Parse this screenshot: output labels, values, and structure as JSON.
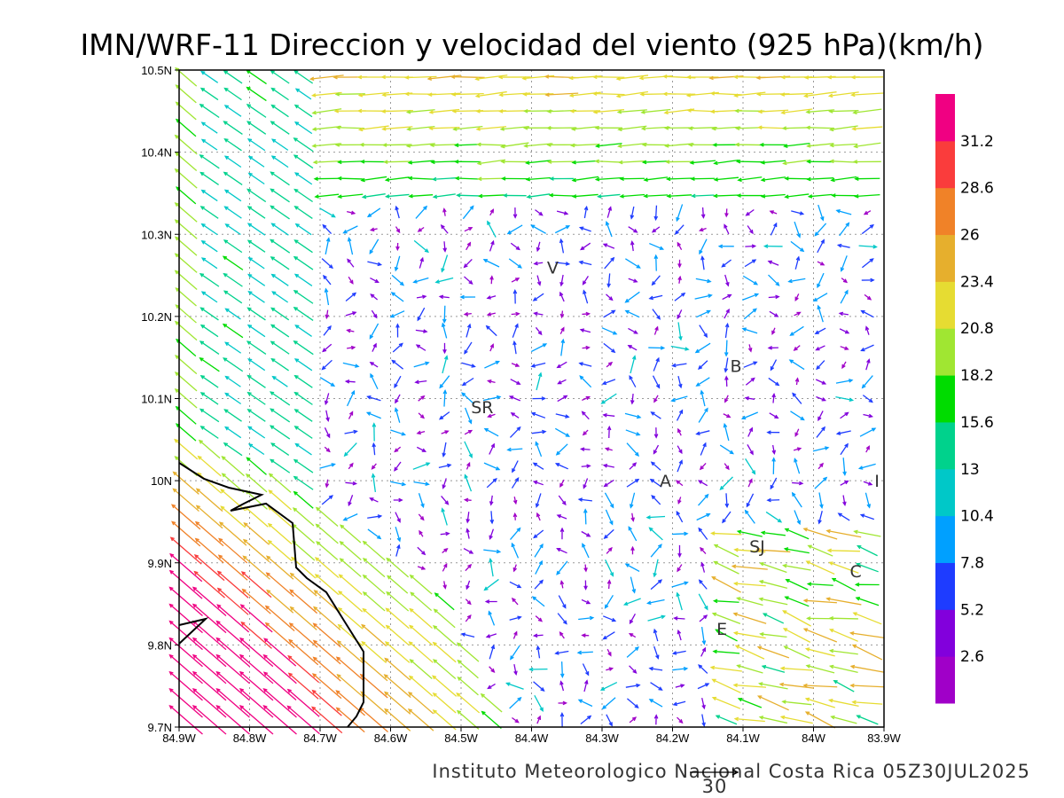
{
  "title": "IMN/WRF-11 Direccion y velocidad del viento (925 hPa)(km/h)",
  "footer": "Instituto Meteorologico Nacional Costa Rica  05Z30JUL2025",
  "reference_vector": {
    "label": "30",
    "value": 30
  },
  "chart_data": {
    "type": "vector-field",
    "units": "km/h",
    "level": "925 hPa",
    "x_ticks": [
      "84.9W",
      "84.8W",
      "84.7W",
      "84.6W",
      "84.5W",
      "84.4W",
      "84.3W",
      "84.2W",
      "84.1W",
      "84W",
      "83.9W"
    ],
    "y_ticks": [
      "10.5N",
      "10.4N",
      "10.3N",
      "10.2N",
      "10.1N",
      "10N",
      "9.9N",
      "9.8N",
      "9.7N"
    ],
    "xlim": [
      -84.9,
      -83.9
    ],
    "ylim": [
      9.7,
      10.5
    ],
    "grid": true,
    "colorbar": {
      "labels": [
        "2.6",
        "5.2",
        "7.8",
        "10.4",
        "13",
        "15.6",
        "18.2",
        "20.8",
        "23.4",
        "26",
        "28.6",
        "31.2"
      ],
      "colors": [
        "#a000c8",
        "#8200dc",
        "#1e3cff",
        "#00a0ff",
        "#00c8c8",
        "#00d28c",
        "#00dc00",
        "#a0e632",
        "#e6dc32",
        "#e6af2d",
        "#f08228",
        "#fa3c3c",
        "#f00082"
      ]
    },
    "places": [
      {
        "label": "V",
        "lon": -84.37,
        "lat": 10.26
      },
      {
        "label": "B",
        "lon": -84.11,
        "lat": 10.14
      },
      {
        "label": "SR",
        "lon": -84.47,
        "lat": 10.09
      },
      {
        "label": "A",
        "lon": -84.21,
        "lat": 10.0
      },
      {
        "label": "I",
        "lon": -83.91,
        "lat": 10.0
      },
      {
        "label": "SJ",
        "lon": -84.08,
        "lat": 9.92
      },
      {
        "label": "C",
        "lon": -83.94,
        "lat": 9.89
      },
      {
        "label": "E",
        "lon": -84.13,
        "lat": 9.82
      }
    ]
  }
}
